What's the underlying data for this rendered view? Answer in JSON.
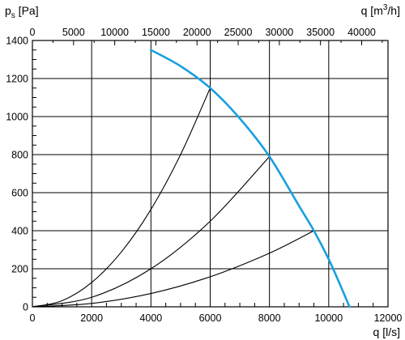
{
  "chart_data": {
    "type": "line",
    "y_axis": {
      "label_main": "p",
      "label_sub": "s",
      "label_unit": " [Pa]",
      "ticks": [
        0,
        200,
        400,
        600,
        800,
        1000,
        1200,
        1400
      ],
      "tick_labels": [
        "0",
        "200",
        "400",
        "600",
        "800",
        "1000",
        "1200",
        "1400"
      ],
      "range": [
        0,
        1400
      ]
    },
    "x_axis_bottom": {
      "label": "q [l/s]",
      "ticks": [
        0,
        2000,
        4000,
        6000,
        8000,
        10000,
        12000
      ],
      "tick_labels": [
        "0",
        "2000",
        "4000",
        "6000",
        "8000",
        "10000",
        "12000"
      ],
      "range": [
        0,
        12000
      ]
    },
    "x_axis_top": {
      "label_main": "q [m",
      "label_sup": "3",
      "label_end": "/h]",
      "ticks": [
        0,
        5000,
        10000,
        15000,
        20000,
        25000,
        30000,
        35000,
        40000
      ],
      "tick_labels": [
        "0",
        "5000",
        "10000",
        "15000",
        "20000",
        "25000",
        "30000",
        "35000",
        "40000"
      ],
      "range": [
        0,
        43200
      ]
    },
    "grid": true,
    "colors": {
      "fan_curve": "#1a9fe0",
      "system_curves": "#000000",
      "grid": "#000000"
    },
    "series": [
      {
        "role": "fan-curve",
        "x": [
          4000,
          5000,
          6000,
          7000,
          8000,
          9000,
          9500,
          10000,
          10400,
          10700
        ],
        "y": [
          1350,
          1265,
          1150,
          990,
          790,
          530,
          400,
          250,
          110,
          0
        ]
      },
      {
        "role": "system-curve-1",
        "x": [
          0,
          1000,
          2000,
          3000,
          4000,
          5000,
          6000
        ],
        "y": [
          0,
          32,
          128,
          288,
          512,
          800,
          1150
        ]
      },
      {
        "role": "system-curve-2",
        "x": [
          0,
          2000,
          4000,
          6000,
          8000
        ],
        "y": [
          0,
          50,
          200,
          450,
          790
        ]
      },
      {
        "role": "system-curve-3",
        "x": [
          0,
          2000,
          4000,
          6000,
          8000,
          9500
        ],
        "y": [
          0,
          18,
          70,
          158,
          282,
          400
        ]
      }
    ]
  }
}
